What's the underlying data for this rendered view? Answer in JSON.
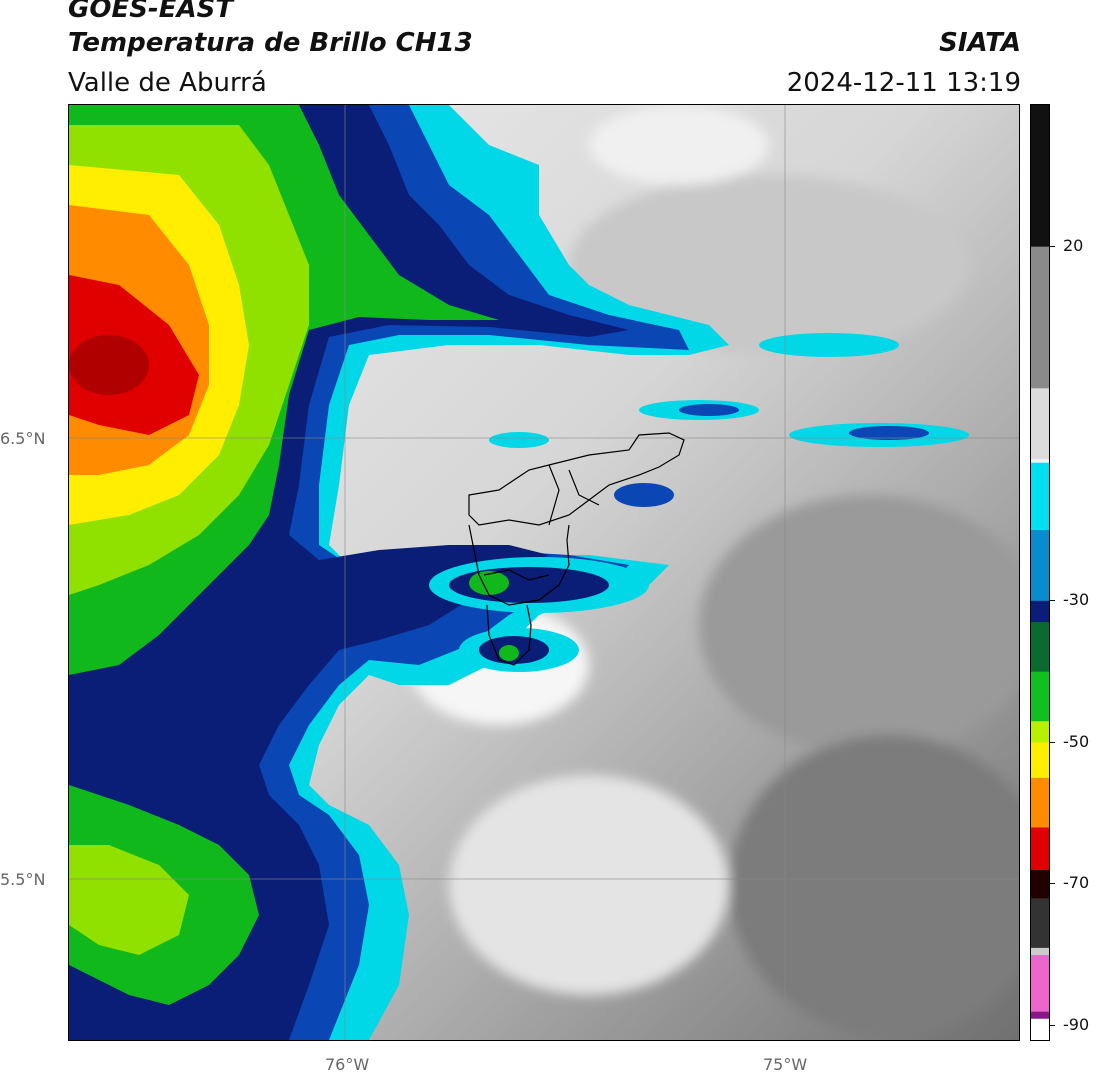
{
  "header": {
    "satellite": "GOES-EAST",
    "product": "Temperatura de Brillo CH13",
    "region": "Valle de Aburrá",
    "organization": "SIATA",
    "timestamp": "2024-12-11 13:19"
  },
  "map": {
    "lat_labels": [
      "6.5°N",
      "5.5°N"
    ],
    "lon_labels": [
      "76°W",
      "75°W"
    ],
    "lat_range": [
      5.125,
      7.25
    ],
    "lon_range": [
      -76.625,
      -74.465
    ],
    "gridlines": true,
    "colors": {
      "warm_clear": "#d8d8d8",
      "cyan": "#00d8e8",
      "blue": "#0a46b4",
      "navy": "#0a1e78",
      "green": "#10b81c",
      "lime": "#90e000",
      "yellow": "#ffee00",
      "orange": "#ff8c00",
      "red": "#e00000"
    }
  },
  "colorbar": {
    "ticks": [
      "20",
      "-30",
      "-50",
      "-70",
      "-90"
    ],
    "tick_values": [
      20,
      -30,
      -50,
      -70,
      -90
    ],
    "range": [
      -92,
      40
    ],
    "stops": [
      {
        "value": 40,
        "color": "#111111"
      },
      {
        "value": 20,
        "color": "#8a8a8a"
      },
      {
        "value": 0,
        "color": "#dcdcdc"
      },
      {
        "value": -10,
        "color": "#f2f2f2"
      },
      {
        "value": -10.5,
        "color": "#00e0f0"
      },
      {
        "value": -20,
        "color": "#0a8ccc"
      },
      {
        "value": -30,
        "color": "#0a1e78"
      },
      {
        "value": -33,
        "color": "#0a6a30"
      },
      {
        "value": -40,
        "color": "#10c020"
      },
      {
        "value": -47,
        "color": "#b8f000"
      },
      {
        "value": -50,
        "color": "#ffee00"
      },
      {
        "value": -55,
        "color": "#ff8c00"
      },
      {
        "value": -62,
        "color": "#e00000"
      },
      {
        "value": -68,
        "color": "#200000"
      },
      {
        "value": -72,
        "color": "#333333"
      },
      {
        "value": -79,
        "color": "#cccccc"
      },
      {
        "value": -80,
        "color": "#ee66cc"
      },
      {
        "value": -88,
        "color": "#881a88"
      },
      {
        "value": -89,
        "color": "#ffffff"
      }
    ]
  }
}
